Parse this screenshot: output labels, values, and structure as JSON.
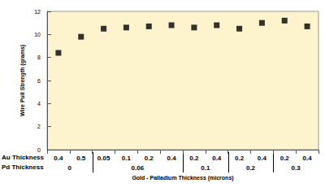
{
  "chart_data": {
    "type": "scatter",
    "x_label": "Gold - Palladium Thickness (microns)",
    "y_label": "Wire Pull Strength (grams)",
    "row_labels": [
      "Au Thickness",
      "Pd Thickness"
    ],
    "categories": [
      "0.4",
      "0.5",
      "0.05",
      "0.1",
      "0.2",
      "0.4",
      "0.2",
      "0.4",
      "0.2",
      "0.4",
      "0.2",
      "0.4"
    ],
    "pd_thickness": [
      "0",
      "0",
      "0.06",
      "0.06",
      "0.06",
      "0.06",
      "0.1",
      "0.1",
      "0.2",
      "0.2",
      "0.3",
      "0.3"
    ],
    "values": [
      8.4,
      9.8,
      10.5,
      10.6,
      10.7,
      10.8,
      10.6,
      10.8,
      10.5,
      11.0,
      11.2,
      10.7
    ],
    "color": "#000000",
    "marker": "square",
    "ylim": [
      0,
      12
    ],
    "yticks": [
      0,
      2,
      4,
      6,
      8,
      10,
      12
    ],
    "grid": false
  }
}
